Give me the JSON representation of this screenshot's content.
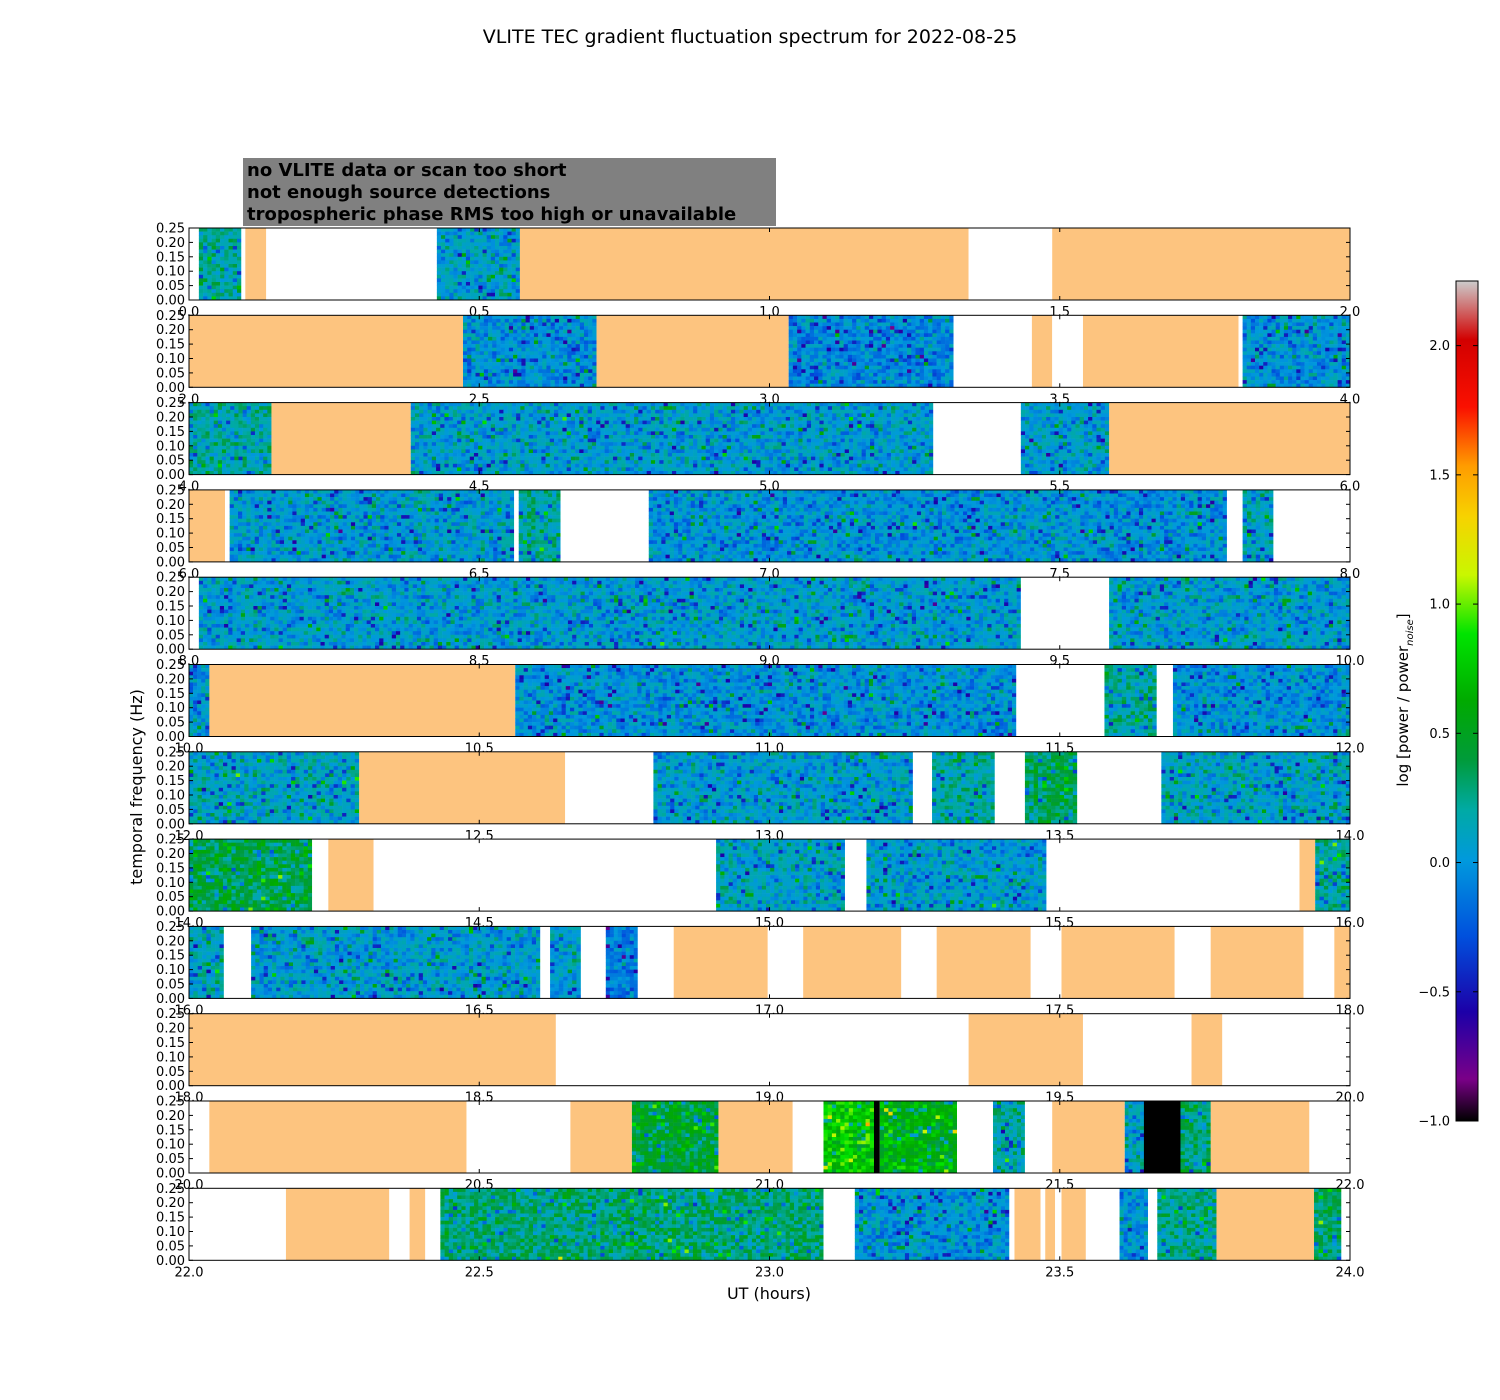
{
  "chart_data": {
    "type": "heatmap",
    "title": "VLITE TEC gradient fluctuation spectrum for 2022-08-25",
    "xlabel": "UT (hours)",
    "ylabel": "temporal frequency (Hz)",
    "colorbar_label": "log [power / power",
    "colorbar_label_sub": "noise",
    "colorbar_label_close": "]",
    "colorbar_range": [
      -1.0,
      2.25
    ],
    "colorbar_ticks": [
      "2.0",
      "1.5",
      "1.0",
      "0.5",
      "0.0",
      "−0.5",
      "−1.0"
    ],
    "colormap": "nipy_spectral",
    "ylim": [
      0.0,
      0.25
    ],
    "y_ticks": [
      "0.00",
      "0.05",
      "0.10",
      "0.15",
      "0.20",
      "0.25"
    ],
    "legend": [
      {
        "label": "no VLITE data or scan too short",
        "text_color": "#ffffff",
        "box_color": "#808080"
      },
      {
        "label": "not enough source detections",
        "text_color": "#000000",
        "box_color": "#808080"
      },
      {
        "label": "tropospheric phase RMS too high or unavailable",
        "text_color": "#fdc47f",
        "box_color": "#808080"
      }
    ],
    "category_colors": {
      "no_data": "#ffffff",
      "troposphere": "#fdc47f",
      "no_detections": "#000000"
    },
    "panels": [
      {
        "xlim": [
          0.0,
          2.0
        ],
        "x_ticks": [
          "0.0",
          "0.5",
          "1.0",
          "1.5",
          "2.0"
        ],
        "segments": [
          {
            "start": 0.0,
            "end": 0.017,
            "kind": "none"
          },
          {
            "start": 0.017,
            "end": 0.09,
            "kind": "spectrum",
            "level": 0.2
          },
          {
            "start": 0.09,
            "end": 0.097,
            "kind": "none"
          },
          {
            "start": 0.097,
            "end": 0.133,
            "kind": "tropo"
          },
          {
            "start": 0.133,
            "end": 0.427,
            "kind": "none"
          },
          {
            "start": 0.427,
            "end": 0.57,
            "kind": "spectrum",
            "level": 0.05
          },
          {
            "start": 0.57,
            "end": 1.343,
            "kind": "tropo"
          },
          {
            "start": 1.343,
            "end": 1.487,
            "kind": "none"
          },
          {
            "start": 1.487,
            "end": 2.0,
            "kind": "tropo"
          }
        ]
      },
      {
        "xlim": [
          2.0,
          4.0
        ],
        "x_ticks": [
          "2.0",
          "2.5",
          "3.0",
          "3.5",
          "4.0"
        ],
        "segments": [
          {
            "start": 2.0,
            "end": 2.472,
            "kind": "tropo"
          },
          {
            "start": 2.472,
            "end": 2.702,
            "kind": "spectrum",
            "level": 0.0
          },
          {
            "start": 2.702,
            "end": 3.033,
            "kind": "tropo"
          },
          {
            "start": 3.033,
            "end": 3.317,
            "kind": "spectrum",
            "level": -0.05
          },
          {
            "start": 3.317,
            "end": 3.452,
            "kind": "none"
          },
          {
            "start": 3.452,
            "end": 3.487,
            "kind": "tropo"
          },
          {
            "start": 3.487,
            "end": 3.54,
            "kind": "none"
          },
          {
            "start": 3.54,
            "end": 3.808,
            "kind": "tropo"
          },
          {
            "start": 3.808,
            "end": 3.815,
            "kind": "none"
          },
          {
            "start": 3.815,
            "end": 4.0,
            "kind": "spectrum",
            "level": 0.0
          }
        ]
      },
      {
        "xlim": [
          4.0,
          6.0
        ],
        "x_ticks": [
          "4.0",
          "4.5",
          "5.0",
          "5.5",
          "6.0"
        ],
        "segments": [
          {
            "start": 4.0,
            "end": 4.142,
            "kind": "spectrum",
            "level": 0.2
          },
          {
            "start": 4.142,
            "end": 4.382,
            "kind": "tropo"
          },
          {
            "start": 4.382,
            "end": 5.282,
            "kind": "spectrum",
            "level": 0.05
          },
          {
            "start": 5.282,
            "end": 5.433,
            "kind": "none"
          },
          {
            "start": 5.433,
            "end": 5.585,
            "kind": "spectrum",
            "level": 0.05
          },
          {
            "start": 5.585,
            "end": 6.0,
            "kind": "tropo"
          }
        ]
      },
      {
        "xlim": [
          6.0,
          8.0
        ],
        "x_ticks": [
          "6.0",
          "6.5",
          "7.0",
          "7.5",
          "8.0"
        ],
        "segments": [
          {
            "start": 6.0,
            "end": 6.062,
            "kind": "tropo"
          },
          {
            "start": 6.062,
            "end": 6.07,
            "kind": "none"
          },
          {
            "start": 6.07,
            "end": 6.56,
            "kind": "spectrum",
            "level": 0.05
          },
          {
            "start": 6.56,
            "end": 6.568,
            "kind": "none"
          },
          {
            "start": 6.568,
            "end": 6.64,
            "kind": "spectrum",
            "level": 0.2
          },
          {
            "start": 6.64,
            "end": 6.792,
            "kind": "none"
          },
          {
            "start": 6.792,
            "end": 7.788,
            "kind": "spectrum",
            "level": 0.0
          },
          {
            "start": 7.788,
            "end": 7.815,
            "kind": "none"
          },
          {
            "start": 7.815,
            "end": 7.868,
            "kind": "spectrum",
            "level": 0.1
          },
          {
            "start": 7.868,
            "end": 8.0,
            "kind": "none"
          }
        ]
      },
      {
        "xlim": [
          8.0,
          10.0
        ],
        "x_ticks": [
          "8.0",
          "8.5",
          "9.0",
          "9.5",
          "10.0"
        ],
        "segments": [
          {
            "start": 8.0,
            "end": 8.017,
            "kind": "none"
          },
          {
            "start": 8.017,
            "end": 9.433,
            "kind": "spectrum",
            "level": 0.05
          },
          {
            "start": 9.433,
            "end": 9.585,
            "kind": "none"
          },
          {
            "start": 9.585,
            "end": 10.0,
            "kind": "spectrum",
            "level": 0.05
          }
        ]
      },
      {
        "xlim": [
          10.0,
          12.0
        ],
        "x_ticks": [
          "10.0",
          "10.5",
          "11.0",
          "11.5",
          "12.0"
        ],
        "segments": [
          {
            "start": 10.0,
            "end": 10.035,
            "kind": "spectrum",
            "level": 0.0
          },
          {
            "start": 10.035,
            "end": 10.562,
            "kind": "tropo"
          },
          {
            "start": 10.562,
            "end": 11.425,
            "kind": "spectrum",
            "level": 0.0
          },
          {
            "start": 11.425,
            "end": 11.577,
            "kind": "none"
          },
          {
            "start": 11.577,
            "end": 11.667,
            "kind": "spectrum",
            "level": 0.2
          },
          {
            "start": 11.667,
            "end": 11.695,
            "kind": "none"
          },
          {
            "start": 11.695,
            "end": 12.0,
            "kind": "spectrum",
            "level": 0.0
          }
        ]
      },
      {
        "xlim": [
          12.0,
          14.0
        ],
        "x_ticks": [
          "12.0",
          "12.5",
          "13.0",
          "13.5",
          "14.0"
        ],
        "segments": [
          {
            "start": 12.0,
            "end": 12.293,
            "kind": "spectrum",
            "level": 0.1
          },
          {
            "start": 12.293,
            "end": 12.648,
            "kind": "tropo"
          },
          {
            "start": 12.648,
            "end": 12.8,
            "kind": "none"
          },
          {
            "start": 12.8,
            "end": 13.247,
            "kind": "spectrum",
            "level": 0.05
          },
          {
            "start": 13.247,
            "end": 13.28,
            "kind": "none"
          },
          {
            "start": 13.28,
            "end": 13.388,
            "kind": "spectrum",
            "level": 0.2
          },
          {
            "start": 13.388,
            "end": 13.44,
            "kind": "none"
          },
          {
            "start": 13.44,
            "end": 13.53,
            "kind": "spectrum",
            "level": 0.35
          },
          {
            "start": 13.53,
            "end": 13.675,
            "kind": "none"
          },
          {
            "start": 13.675,
            "end": 14.0,
            "kind": "spectrum",
            "level": 0.1
          }
        ]
      },
      {
        "xlim": [
          14.0,
          16.0
        ],
        "x_ticks": [
          "14.0",
          "14.5",
          "15.0",
          "15.5",
          "16.0"
        ],
        "segments": [
          {
            "start": 14.0,
            "end": 14.212,
            "kind": "spectrum",
            "level": 0.4
          },
          {
            "start": 14.212,
            "end": 14.24,
            "kind": "none"
          },
          {
            "start": 14.24,
            "end": 14.318,
            "kind": "tropo"
          },
          {
            "start": 14.318,
            "end": 14.908,
            "kind": "none"
          },
          {
            "start": 14.908,
            "end": 15.13,
            "kind": "spectrum",
            "level": 0.1
          },
          {
            "start": 15.13,
            "end": 15.167,
            "kind": "none"
          },
          {
            "start": 15.167,
            "end": 15.477,
            "kind": "spectrum",
            "level": 0.05
          },
          {
            "start": 15.477,
            "end": 15.913,
            "kind": "none"
          },
          {
            "start": 15.913,
            "end": 15.94,
            "kind": "tropo"
          },
          {
            "start": 15.94,
            "end": 16.0,
            "kind": "spectrum",
            "level": 0.2
          }
        ]
      },
      {
        "xlim": [
          16.0,
          18.0
        ],
        "x_ticks": [
          "16.0",
          "16.5",
          "17.0",
          "17.5",
          "18.0"
        ],
        "segments": [
          {
            "start": 16.0,
            "end": 16.06,
            "kind": "spectrum",
            "level": 0.1
          },
          {
            "start": 16.06,
            "end": 16.107,
            "kind": "none"
          },
          {
            "start": 16.107,
            "end": 16.605,
            "kind": "spectrum",
            "level": 0.05
          },
          {
            "start": 16.605,
            "end": 16.622,
            "kind": "none"
          },
          {
            "start": 16.622,
            "end": 16.675,
            "kind": "spectrum",
            "level": 0.05
          },
          {
            "start": 16.675,
            "end": 16.718,
            "kind": "none"
          },
          {
            "start": 16.718,
            "end": 16.773,
            "kind": "spectrum",
            "level": -0.1
          },
          {
            "start": 16.773,
            "end": 16.835,
            "kind": "none"
          },
          {
            "start": 16.835,
            "end": 16.997,
            "kind": "tropo"
          },
          {
            "start": 16.997,
            "end": 17.058,
            "kind": "none"
          },
          {
            "start": 17.058,
            "end": 17.227,
            "kind": "tropo"
          },
          {
            "start": 17.227,
            "end": 17.288,
            "kind": "none"
          },
          {
            "start": 17.288,
            "end": 17.45,
            "kind": "tropo"
          },
          {
            "start": 17.45,
            "end": 17.503,
            "kind": "none"
          },
          {
            "start": 17.503,
            "end": 17.698,
            "kind": "tropo"
          },
          {
            "start": 17.698,
            "end": 17.76,
            "kind": "none"
          },
          {
            "start": 17.76,
            "end": 17.92,
            "kind": "tropo"
          },
          {
            "start": 17.92,
            "end": 17.973,
            "kind": "none"
          },
          {
            "start": 17.973,
            "end": 18.0,
            "kind": "tropo"
          }
        ]
      },
      {
        "xlim": [
          18.0,
          20.0
        ],
        "x_ticks": [
          "18.0",
          "18.5",
          "19.0",
          "19.5",
          "20.0"
        ],
        "segments": [
          {
            "start": 18.0,
            "end": 18.632,
            "kind": "tropo"
          },
          {
            "start": 18.632,
            "end": 19.343,
            "kind": "none"
          },
          {
            "start": 19.343,
            "end": 19.54,
            "kind": "tropo"
          },
          {
            "start": 19.54,
            "end": 19.727,
            "kind": "none"
          },
          {
            "start": 19.727,
            "end": 19.78,
            "kind": "tropo"
          },
          {
            "start": 19.78,
            "end": 20.0,
            "kind": "none"
          }
        ]
      },
      {
        "xlim": [
          20.0,
          22.0
        ],
        "x_ticks": [
          "20.0",
          "20.5",
          "21.0",
          "21.5",
          "22.0"
        ],
        "segments": [
          {
            "start": 20.0,
            "end": 20.035,
            "kind": "none"
          },
          {
            "start": 20.035,
            "end": 20.478,
            "kind": "tropo"
          },
          {
            "start": 20.478,
            "end": 20.657,
            "kind": "none"
          },
          {
            "start": 20.657,
            "end": 20.763,
            "kind": "tropo"
          },
          {
            "start": 20.763,
            "end": 20.912,
            "kind": "spectrum",
            "level": 0.45
          },
          {
            "start": 20.912,
            "end": 21.04,
            "kind": "tropo"
          },
          {
            "start": 21.04,
            "end": 21.093,
            "kind": "none"
          },
          {
            "start": 21.093,
            "end": 21.18,
            "kind": "spectrum",
            "level": 0.75
          },
          {
            "start": 21.18,
            "end": 21.19,
            "kind": "nodet"
          },
          {
            "start": 21.19,
            "end": 21.323,
            "kind": "spectrum",
            "level": 0.6
          },
          {
            "start": 21.323,
            "end": 21.385,
            "kind": "none"
          },
          {
            "start": 21.385,
            "end": 21.44,
            "kind": "spectrum",
            "level": 0.2
          },
          {
            "start": 21.44,
            "end": 21.487,
            "kind": "none"
          },
          {
            "start": 21.487,
            "end": 21.612,
            "kind": "tropo"
          },
          {
            "start": 21.612,
            "end": 21.645,
            "kind": "spectrum",
            "level": 0.1
          },
          {
            "start": 21.645,
            "end": 21.708,
            "kind": "nodet"
          },
          {
            "start": 21.708,
            "end": 21.76,
            "kind": "spectrum",
            "level": 0.3
          },
          {
            "start": 21.76,
            "end": 21.93,
            "kind": "tropo"
          },
          {
            "start": 21.93,
            "end": 22.0,
            "kind": "none"
          }
        ]
      },
      {
        "xlim": [
          22.0,
          24.0
        ],
        "x_ticks": [
          "22.0",
          "22.5",
          "23.0",
          "23.5",
          "24.0"
        ],
        "segments": [
          {
            "start": 22.0,
            "end": 22.167,
            "kind": "none"
          },
          {
            "start": 22.167,
            "end": 22.345,
            "kind": "tropo"
          },
          {
            "start": 22.345,
            "end": 22.38,
            "kind": "none"
          },
          {
            "start": 22.38,
            "end": 22.407,
            "kind": "tropo"
          },
          {
            "start": 22.407,
            "end": 22.433,
            "kind": "none"
          },
          {
            "start": 22.433,
            "end": 23.093,
            "kind": "spectrum",
            "level": 0.3
          },
          {
            "start": 23.093,
            "end": 23.147,
            "kind": "none"
          },
          {
            "start": 23.147,
            "end": 23.413,
            "kind": "spectrum",
            "level": 0.0
          },
          {
            "start": 23.413,
            "end": 23.422,
            "kind": "none"
          },
          {
            "start": 23.422,
            "end": 23.467,
            "kind": "tropo"
          },
          {
            "start": 23.467,
            "end": 23.475,
            "kind": "none"
          },
          {
            "start": 23.475,
            "end": 23.492,
            "kind": "tropo"
          },
          {
            "start": 23.492,
            "end": 23.503,
            "kind": "none"
          },
          {
            "start": 23.503,
            "end": 23.545,
            "kind": "tropo"
          },
          {
            "start": 23.545,
            "end": 23.603,
            "kind": "none"
          },
          {
            "start": 23.603,
            "end": 23.652,
            "kind": "spectrum",
            "level": 0.0
          },
          {
            "start": 23.652,
            "end": 23.668,
            "kind": "none"
          },
          {
            "start": 23.668,
            "end": 23.77,
            "kind": "spectrum",
            "level": 0.25
          },
          {
            "start": 23.77,
            "end": 23.938,
            "kind": "tropo"
          },
          {
            "start": 23.938,
            "end": 23.985,
            "kind": "spectrum",
            "level": 0.3
          },
          {
            "start": 23.985,
            "end": 24.0,
            "kind": "none"
          }
        ]
      }
    ]
  }
}
